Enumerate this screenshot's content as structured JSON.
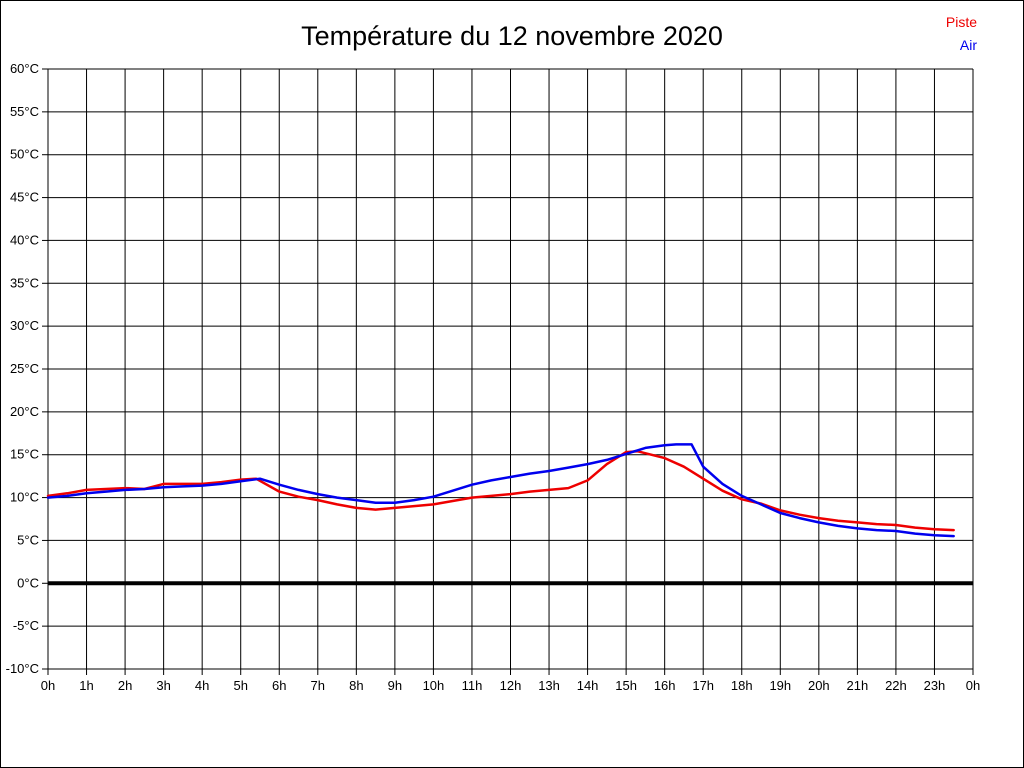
{
  "page": {
    "title": "Température du 12 novembre 2020"
  },
  "legend": {
    "items": [
      {
        "label": "Piste",
        "color": "#ee0000"
      },
      {
        "label": "Air",
        "color": "#0000ee"
      }
    ]
  },
  "chart_data": {
    "type": "line",
    "title": "Température du 12 novembre 2020",
    "xlabel": "",
    "ylabel": "",
    "xlim": [
      0,
      24
    ],
    "ylim": [
      -10,
      60
    ],
    "y_tick_step": 5,
    "grid": true,
    "zero_line_bold": true,
    "legend_position": "top-right",
    "x_tick_labels": [
      "0h",
      "1h",
      "2h",
      "3h",
      "4h",
      "5h",
      "6h",
      "7h",
      "8h",
      "9h",
      "10h",
      "11h",
      "12h",
      "13h",
      "14h",
      "15h",
      "16h",
      "17h",
      "18h",
      "19h",
      "20h",
      "21h",
      "22h",
      "23h",
      "0h"
    ],
    "y_tick_labels": [
      "60°C",
      "55°C",
      "50°C",
      "45°C",
      "40°C",
      "35°C",
      "30°C",
      "25°C",
      "20°C",
      "15°C",
      "10°C",
      "5°C",
      "0°C",
      "-5°C",
      "-10°C"
    ],
    "series": [
      {
        "name": "Piste",
        "color": "#ee0000",
        "points": [
          [
            0,
            10.2
          ],
          [
            0.5,
            10.5
          ],
          [
            1,
            10.9
          ],
          [
            1.5,
            11.0
          ],
          [
            2,
            11.1
          ],
          [
            2.5,
            11.0
          ],
          [
            3,
            11.6
          ],
          [
            3.5,
            11.6
          ],
          [
            4,
            11.6
          ],
          [
            4.5,
            11.8
          ],
          [
            5,
            12.1
          ],
          [
            5.4,
            12.2
          ],
          [
            6,
            10.7
          ],
          [
            6.5,
            10.1
          ],
          [
            7,
            9.7
          ],
          [
            7.5,
            9.2
          ],
          [
            8,
            8.8
          ],
          [
            8.5,
            8.6
          ],
          [
            9,
            8.8
          ],
          [
            9.5,
            9.0
          ],
          [
            10,
            9.2
          ],
          [
            10.5,
            9.6
          ],
          [
            11,
            10.0
          ],
          [
            11.5,
            10.2
          ],
          [
            12,
            10.4
          ],
          [
            12.5,
            10.7
          ],
          [
            13,
            10.9
          ],
          [
            13.5,
            11.1
          ],
          [
            14,
            12.0
          ],
          [
            14.5,
            13.9
          ],
          [
            15,
            15.3
          ],
          [
            15.3,
            15.4
          ],
          [
            16,
            14.6
          ],
          [
            16.5,
            13.6
          ],
          [
            17,
            12.2
          ],
          [
            17.5,
            10.8
          ],
          [
            18,
            9.8
          ],
          [
            18.5,
            9.3
          ],
          [
            19,
            8.5
          ],
          [
            19.5,
            8.0
          ],
          [
            20,
            7.6
          ],
          [
            20.5,
            7.3
          ],
          [
            21,
            7.1
          ],
          [
            21.5,
            6.9
          ],
          [
            22,
            6.8
          ],
          [
            22.5,
            6.5
          ],
          [
            23,
            6.3
          ],
          [
            23.5,
            6.2
          ]
        ]
      },
      {
        "name": "Air",
        "color": "#0000ee",
        "points": [
          [
            0,
            10.0
          ],
          [
            0.5,
            10.2
          ],
          [
            1,
            10.5
          ],
          [
            1.5,
            10.7
          ],
          [
            2,
            10.9
          ],
          [
            2.5,
            11.0
          ],
          [
            3,
            11.2
          ],
          [
            3.5,
            11.3
          ],
          [
            4,
            11.4
          ],
          [
            4.5,
            11.6
          ],
          [
            5,
            11.9
          ],
          [
            5.5,
            12.2
          ],
          [
            6,
            11.5
          ],
          [
            6.5,
            10.9
          ],
          [
            7,
            10.4
          ],
          [
            7.5,
            10.0
          ],
          [
            8,
            9.7
          ],
          [
            8.5,
            9.4
          ],
          [
            9,
            9.4
          ],
          [
            9.5,
            9.7
          ],
          [
            10,
            10.1
          ],
          [
            10.5,
            10.8
          ],
          [
            11,
            11.5
          ],
          [
            11.5,
            12.0
          ],
          [
            12,
            12.4
          ],
          [
            12.5,
            12.8
          ],
          [
            13,
            13.1
          ],
          [
            13.5,
            13.5
          ],
          [
            14,
            13.9
          ],
          [
            14.5,
            14.4
          ],
          [
            15,
            15.1
          ],
          [
            15.5,
            15.8
          ],
          [
            16,
            16.1
          ],
          [
            16.3,
            16.2
          ],
          [
            16.7,
            16.2
          ],
          [
            17,
            13.6
          ],
          [
            17.5,
            11.6
          ],
          [
            18,
            10.2
          ],
          [
            18.5,
            9.2
          ],
          [
            19,
            8.2
          ],
          [
            19.5,
            7.6
          ],
          [
            20,
            7.1
          ],
          [
            20.5,
            6.7
          ],
          [
            21,
            6.4
          ],
          [
            21.5,
            6.2
          ],
          [
            22,
            6.1
          ],
          [
            22.5,
            5.8
          ],
          [
            23,
            5.6
          ],
          [
            23.5,
            5.5
          ]
        ]
      }
    ]
  }
}
